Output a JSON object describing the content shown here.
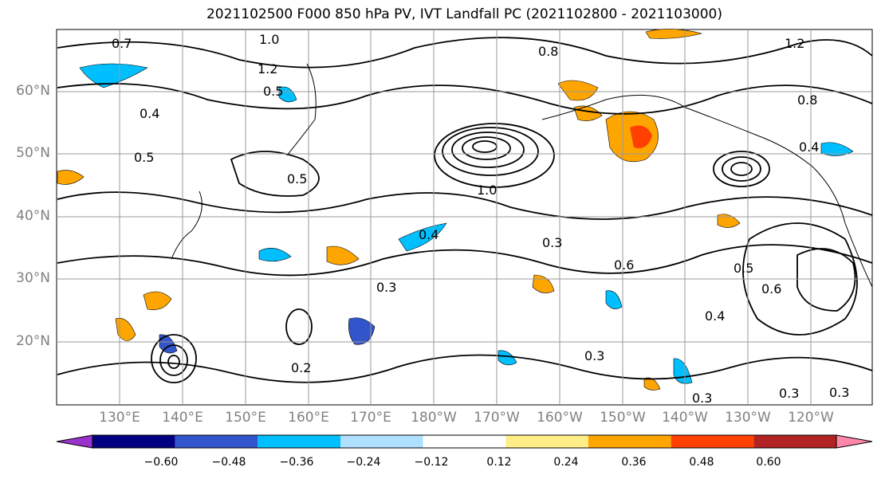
{
  "title": "2021102500 F000 850 hPa PV, IVT Landfall PC (2021102800 - 2021103000)",
  "lat_labels": [
    "60°N",
    "50°N",
    "40°N",
    "30°N",
    "20°N"
  ],
  "lon_labels": [
    "130°E",
    "140°E",
    "150°E",
    "160°E",
    "170°E",
    "180°W",
    "170°W",
    "160°W",
    "150°W",
    "140°W",
    "130°W",
    "120°W"
  ],
  "colorbar": {
    "ticks": [
      "−0.60",
      "−0.48",
      "−0.36",
      "−0.24",
      "−0.12",
      "0.12",
      "0.24",
      "0.36",
      "0.48",
      "0.60"
    ],
    "colors": [
      "#9933cc",
      "#000080",
      "#3355cc",
      "#00bfff",
      "#b0e0ff",
      "#ffffff",
      "#ffee88",
      "#ffa500",
      "#ff4000",
      "#b22222",
      "#ff88aa"
    ]
  },
  "contour_labels": [
    {
      "text": "1.0"
    },
    {
      "text": "1.2"
    },
    {
      "text": "0.7"
    },
    {
      "text": "0.5"
    },
    {
      "text": "0.4"
    },
    {
      "text": "0.5"
    },
    {
      "text": "0.5"
    },
    {
      "text": "1.0"
    },
    {
      "text": "0.3"
    },
    {
      "text": "0.3"
    },
    {
      "text": "0.4"
    },
    {
      "text": "0.2"
    },
    {
      "text": "0.3"
    },
    {
      "text": "0.4"
    },
    {
      "text": "0.5"
    },
    {
      "text": "0.6"
    },
    {
      "text": "0.3"
    },
    {
      "text": "0.3"
    },
    {
      "text": "0.3"
    },
    {
      "text": "0.8"
    },
    {
      "text": "0.8"
    },
    {
      "text": "1.2"
    },
    {
      "text": "0.4"
    },
    {
      "text": "0.6"
    }
  ],
  "colors": {
    "grid": "#999999",
    "axis_label": "#808080",
    "contour": "#000000"
  }
}
